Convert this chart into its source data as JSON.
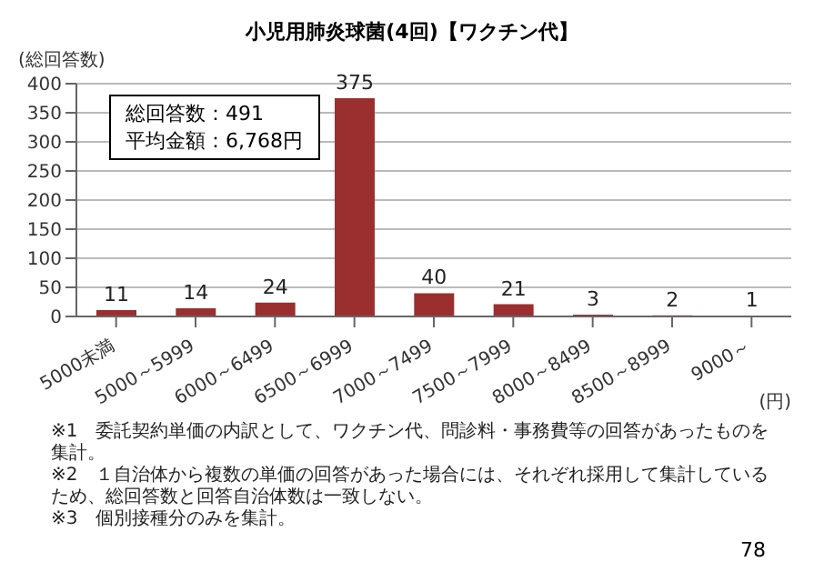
{
  "chart_data": {
    "type": "bar",
    "title": "小児用肺炎球菌(4回)【ワクチン代】",
    "ylabel": "(総回答数)",
    "xlabel": "(円)",
    "categories": [
      "5000未満",
      "5000～5999",
      "6000～6499",
      "6500～6999",
      "7000～7499",
      "7500～7999",
      "8000～8499",
      "8500～8999",
      "9000～"
    ],
    "values": [
      11,
      14,
      24,
      375,
      40,
      21,
      3,
      2,
      1
    ],
    "color": "#9b2f2f",
    "data_labels": true,
    "grid": "y",
    "ylim": [
      0,
      400
    ],
    "yticks": [
      0,
      50,
      100,
      150,
      200,
      250,
      300,
      350,
      400
    ],
    "annotations": [
      "総回答数：491",
      "平均金額：6,768円",
      "※1　委託契約単価の内訳として、ワクチン代、問診料・事務費等の回答があったものを集計。",
      "※2　１自治体から複数の単価の回答があった場合には、それぞれ採用して集計しているため、総回答数と回答自治体数は一致しない。",
      "※3　個別接種分のみを集計。",
      "78"
    ]
  }
}
